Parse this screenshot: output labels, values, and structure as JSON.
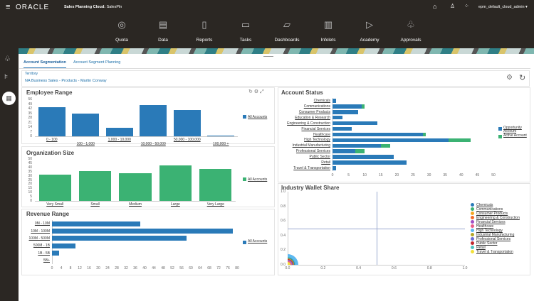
{
  "header": {
    "brand": "ORACLE",
    "app_title": "Sales Planning Cloud:",
    "app_name": "SalesPln",
    "user": "epm_default_cloud_admin ▾"
  },
  "nav": [
    {
      "label": "Quota",
      "icon": "target-icon"
    },
    {
      "label": "Data",
      "icon": "grid-icon"
    },
    {
      "label": "Reports",
      "icon": "report-icon"
    },
    {
      "label": "Tasks",
      "icon": "clipboard-icon"
    },
    {
      "label": "Dashboards",
      "icon": "dashboard-icon"
    },
    {
      "label": "Infolets",
      "icon": "infolet-icon"
    },
    {
      "label": "Academy",
      "icon": "play-icon"
    },
    {
      "label": "Approvals",
      "icon": "hierarchy-icon"
    }
  ],
  "tabs": [
    {
      "label": "Account Segmentation",
      "active": true
    },
    {
      "label": "Account Segment Planning",
      "active": false
    }
  ],
  "pov": {
    "label": "Territory",
    "value": "NA Business Sales - Products - Martin Conway"
  },
  "colors": {
    "blue": "#2a7ab8",
    "green": "#3bb273"
  },
  "chart_data": [
    {
      "type": "bar",
      "title": "Employee Range",
      "categories": [
        "0 - 100",
        "100 - 1,000",
        "1,000 - 10,000",
        "10,000 - 50,000",
        "50,000 - 100,000",
        "100,000 +"
      ],
      "series": [
        {
          "name": "All Accounts",
          "values": [
            44,
            35,
            13,
            47,
            40,
            1
          ]
        }
      ],
      "ylim": [
        0,
        56
      ],
      "yticks": [
        0,
        7,
        14,
        21,
        28,
        35,
        42,
        49,
        56
      ],
      "legend": "right"
    },
    {
      "type": "bar",
      "title": "Organization Size",
      "categories": [
        "Very Small",
        "Small",
        "Medium",
        "Large",
        "Very Large"
      ],
      "series": [
        {
          "name": "All Accounts",
          "values": [
            31,
            36,
            33,
            42,
            38
          ]
        }
      ],
      "ylim": [
        0,
        50
      ],
      "yticks": [
        0,
        5,
        10,
        15,
        20,
        25,
        30,
        35,
        40,
        45,
        50
      ],
      "legend": "right"
    },
    {
      "type": "bar",
      "orientation": "horizontal",
      "title": "Revenue Range",
      "categories": [
        "0M - 10M",
        "10M - 100M",
        "100M - 500M",
        "500M - 1B",
        "1B - 5B",
        "5B+"
      ],
      "series": [
        {
          "name": "All Accounts",
          "values": [
            38,
            78,
            58,
            10,
            3,
            0
          ]
        }
      ],
      "xlim": [
        0,
        80
      ],
      "xticks": [
        0,
        4,
        8,
        12,
        16,
        20,
        24,
        28,
        32,
        36,
        40,
        44,
        48,
        52,
        56,
        60,
        64,
        68,
        72,
        76,
        80
      ],
      "legend": "right"
    },
    {
      "type": "bar",
      "orientation": "horizontal",
      "stacked": true,
      "title": "Account Status",
      "categories": [
        "Chemicals",
        "Communications",
        "Consumer Products",
        "Education & Research",
        "Engineering & Construction",
        "Financial Services",
        "Healthcare",
        "High Technology",
        "Industrial Manufacturing",
        "Professional Services",
        "Public Sector",
        "Retail",
        "Travel & Transportation"
      ],
      "series": [
        {
          "name": "Opportunity Account",
          "values": [
            1,
            9,
            8,
            3,
            14,
            6,
            28,
            36,
            15,
            7,
            19,
            23,
            1
          ]
        },
        {
          "name": "Active Account",
          "values": [
            0,
            1,
            0,
            0,
            0,
            0,
            1,
            7,
            3,
            3,
            0,
            0,
            0
          ]
        }
      ],
      "xlim": [
        0,
        50
      ],
      "xticks": [
        0,
        5,
        10,
        15,
        20,
        25,
        30,
        35,
        40,
        45,
        50
      ],
      "legend": "right"
    },
    {
      "type": "scatter",
      "title": "Industry Wallet Share",
      "xlim": [
        0,
        1
      ],
      "ylim": [
        0,
        1
      ],
      "xticks": [
        "0.0",
        "0.2",
        "0.4",
        "0.6",
        "0.8",
        "1.0"
      ],
      "yticks": [
        "0.0",
        "0.2",
        "0.4",
        "0.6",
        "0.8",
        "1.0"
      ],
      "reference_lines": {
        "x": 0.5,
        "y": 0.5
      },
      "series": [
        {
          "name": "Chemicals",
          "color": "#2a7ab8"
        },
        {
          "name": "Communications",
          "color": "#3bb273"
        },
        {
          "name": "Consumer Products",
          "color": "#f5a623"
        },
        {
          "name": "Engineering & Construction",
          "color": "#f26b2a"
        },
        {
          "name": "Financial Services",
          "color": "#a14fc4"
        },
        {
          "name": "Healthcare",
          "color": "#e85c8a"
        },
        {
          "name": "High Technology",
          "color": "#5db8f0"
        },
        {
          "name": "Industrial Manufacturing",
          "color": "#b4a72a"
        },
        {
          "name": "Professional Services",
          "color": "#6b6fd6"
        },
        {
          "name": "Public Sector",
          "color": "#c0282d"
        },
        {
          "name": "Retail",
          "color": "#4cc3c0"
        },
        {
          "name": "Travel & Transportation",
          "color": "#f2e03a"
        }
      ],
      "legend": "right"
    }
  ]
}
